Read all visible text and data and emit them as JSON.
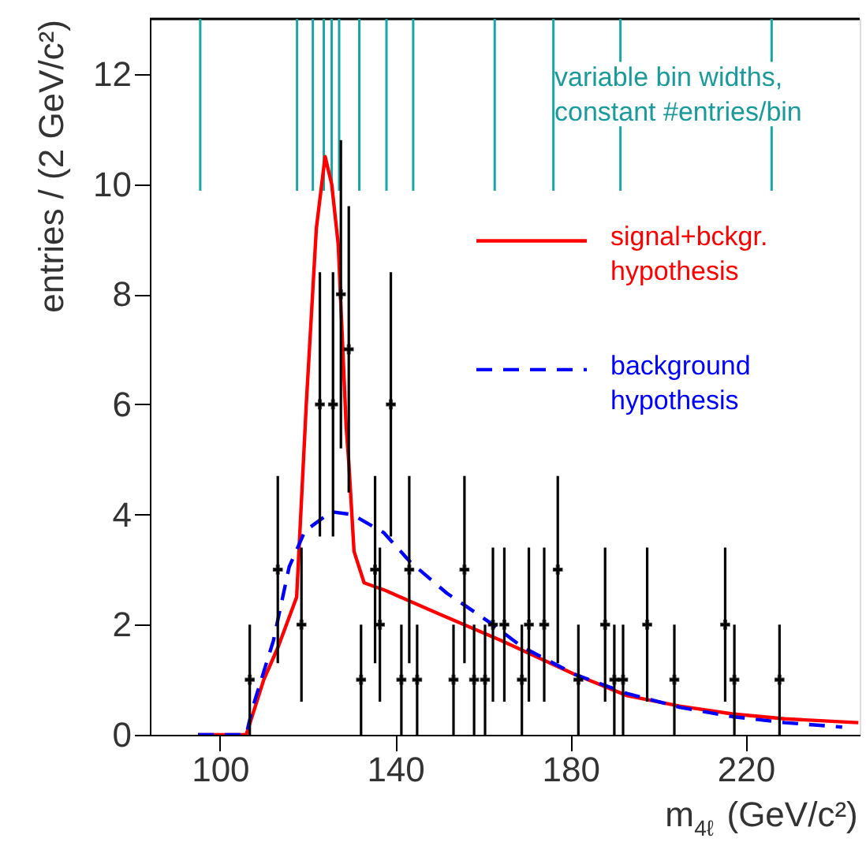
{
  "chart_data": {
    "type": "line",
    "xlabel": "m$_{4ℓ}$ (GeV/c²)",
    "ylabel": "entries / (2 GeV/c²)",
    "xlim": [
      84,
      246
    ],
    "ylim": [
      0,
      13
    ],
    "xticks": [
      100,
      140,
      180,
      220
    ],
    "yticks": [
      0,
      2,
      4,
      6,
      8,
      10,
      12
    ],
    "grid": false,
    "legend": "top right",
    "series": [
      {
        "type": "scatter",
        "color": "#000000",
        "marker": "cross",
        "x": [
          106.8,
          113.2,
          118.6,
          122.8,
          125.8,
          127.6,
          129.4,
          132.2,
          135.4,
          136.5,
          139,
          141.4,
          143.2,
          145,
          153.3,
          155.8,
          158,
          160.5,
          162.3,
          164.9,
          168.9,
          170.5,
          174,
          177.1,
          181.8,
          187.9,
          190,
          192,
          197.5,
          203.7,
          215.3,
          217.4,
          227.7
        ],
        "values": [
          1,
          3,
          2,
          6,
          6,
          8,
          7,
          1,
          3,
          2,
          6,
          1,
          3,
          1,
          1,
          3,
          1,
          1,
          2,
          2,
          1,
          2,
          2,
          3,
          1,
          2,
          1,
          1,
          2,
          1,
          2,
          1,
          1
        ],
        "errors": [
          1,
          1.7,
          1.4,
          2.4,
          2.4,
          2.8,
          2.6,
          1,
          1.7,
          1.4,
          2.4,
          1,
          1.7,
          1,
          1,
          1.7,
          1,
          1,
          1.4,
          1.4,
          1,
          1.4,
          1.4,
          1.7,
          1,
          1.4,
          1,
          1,
          1.4,
          1,
          1.4,
          1,
          1
        ],
        "xerrors": [
          1,
          1,
          1,
          1,
          1,
          1,
          1,
          1,
          1,
          1,
          1,
          1,
          1,
          1,
          1,
          1,
          1,
          1,
          1,
          1,
          1,
          1,
          1,
          1,
          1,
          1,
          1,
          1,
          1,
          1,
          1,
          1,
          1
        ]
      },
      {
        "name": "signal+bckgr.\nhypothesis",
        "color": "#ff0000",
        "line_style": "solid",
        "x": [
          95,
          106,
          110,
          113.3,
          117.5,
          119.7,
          122,
          124,
          125.5,
          127,
          128.8,
          129.4,
          130.6,
          132.9,
          137.8,
          149.8,
          164.2,
          180.9,
          192.9,
          204.9,
          216.9,
          228.9,
          245.7
        ],
        "values": [
          0,
          0,
          1,
          1.6,
          2.5,
          6,
          9.2,
          10.5,
          10,
          8.9,
          5.6,
          4.95,
          3.33,
          2.76,
          2.62,
          2.2,
          1.71,
          1.1,
          0.71,
          0.52,
          0.38,
          0.29,
          0.22
        ]
      },
      {
        "type": "line",
        "name": "background\nhypothesis",
        "color": "#0000ff",
        "line_style": "dashed",
        "x": [
          95,
          106,
          107.4,
          112.2,
          115.8,
          119.4,
          125.4,
          130.2,
          137.4,
          143.4,
          151.8,
          161.4,
          168.9,
          180.9,
          192.9,
          204.9,
          216.9,
          228.9,
          242
        ],
        "values": [
          0,
          0,
          0.48,
          1.71,
          3.05,
          3.7,
          4.05,
          4.0,
          3.67,
          3.14,
          2.57,
          2.05,
          1.6,
          1.1,
          0.75,
          0.5,
          0.33,
          0.22,
          0.14
        ]
      }
    ],
    "ref_lines": [
      {
        "axis": "x",
        "value": 95.5,
        "color": "#1aa5a5"
      },
      {
        "axis": "x",
        "value": 117.6,
        "color": "#1aa5a5"
      },
      {
        "axis": "x",
        "value": 121.2,
        "color": "#1aa5a5"
      },
      {
        "axis": "x",
        "value": 123.7,
        "color": "#1aa5a5"
      },
      {
        "axis": "x",
        "value": 125.5,
        "color": "#1aa5a5"
      },
      {
        "axis": "x",
        "value": 127.2,
        "color": "#1aa5a5"
      },
      {
        "axis": "x",
        "value": 131.8,
        "color": "#1aa5a5"
      },
      {
        "axis": "x",
        "value": 138,
        "color": "#1aa5a5"
      },
      {
        "axis": "x",
        "value": 144.1,
        "color": "#1aa5a5"
      },
      {
        "axis": "x",
        "value": 162.7,
        "color": "#1aa5a5"
      },
      {
        "axis": "x",
        "value": 176.1,
        "color": "#1aa5a5"
      },
      {
        "axis": "x",
        "value": 191.4,
        "color": "#1aa5a5"
      },
      {
        "axis": "x",
        "value": 225.9,
        "color": "#1aa5a5"
      }
    ],
    "annotations": [
      "variable bin widths,\nconstant #entries/bin"
    ]
  }
}
